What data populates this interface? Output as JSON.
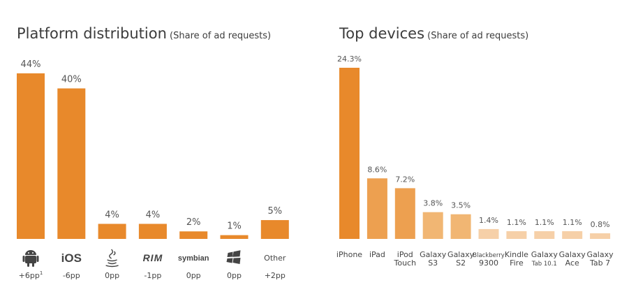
{
  "chart_data": [
    {
      "type": "bar",
      "title": "Platform distribution",
      "subtitle": "(Share of ad requests)",
      "unit": "%",
      "categories": [
        "Android",
        "iOS",
        "Java",
        "RIM",
        "symbian",
        "Windows",
        "Other"
      ],
      "category_labels": [
        "",
        "iOS",
        "",
        "RIM",
        "symbian",
        "",
        "Other"
      ],
      "icons": [
        "android-icon",
        "ios-logo",
        "java-icon",
        "rim-logo",
        "symbian-logo",
        "windows-icon",
        "other-label"
      ],
      "values": [
        44,
        40,
        4,
        4,
        2,
        1,
        5
      ],
      "value_labels": [
        "44%",
        "40%",
        "4%",
        "4%",
        "2%",
        "1%",
        "5%"
      ],
      "change_labels": [
        "+6pp",
        "-6pp",
        "0pp",
        "-1pp",
        "0pp",
        "0pp",
        "+2pp"
      ],
      "footnote_mark": "1",
      "color": "#e8892b",
      "ylim": [
        0,
        44
      ]
    },
    {
      "type": "bar",
      "title": "Top devices",
      "subtitle": "(Share of ad requests)",
      "unit": "%",
      "categories": [
        "iPhone",
        "iPad",
        "iPod Touch",
        "Galaxy S3",
        "Galaxy S2",
        "Blackberry 9300",
        "Kindle Fire",
        "Galaxy Tab 10.1",
        "Galaxy Ace",
        "Galaxy Tab 7"
      ],
      "category_lines": [
        [
          "iPhone"
        ],
        [
          "iPad"
        ],
        [
          "iPod",
          "Touch"
        ],
        [
          "Galaxy",
          "S3"
        ],
        [
          "Galaxy",
          "S2"
        ],
        [
          "Blackberry",
          "9300"
        ],
        [
          "Kindle",
          "Fire"
        ],
        [
          "Galaxy",
          "Tab 10.1"
        ],
        [
          "Galaxy",
          "Ace"
        ],
        [
          "Galaxy",
          "Tab 7"
        ]
      ],
      "values": [
        24.3,
        8.6,
        7.2,
        3.8,
        3.5,
        1.4,
        1.1,
        1.1,
        1.1,
        0.8
      ],
      "value_labels": [
        "24.3%",
        "8.6%",
        "7.2%",
        "3.8%",
        "3.5%",
        "1.4%",
        "1.1%",
        "1.1%",
        "1.1%",
        "0.8%"
      ],
      "colors": [
        "#e8892b",
        "#eda050",
        "#eda050",
        "#f1b673",
        "#f1b673",
        "#f6d0a8",
        "#f6d0a8",
        "#f6d0a8",
        "#f6d0a8",
        "#f6d0a8"
      ],
      "ylim": [
        0,
        24.3
      ]
    }
  ]
}
